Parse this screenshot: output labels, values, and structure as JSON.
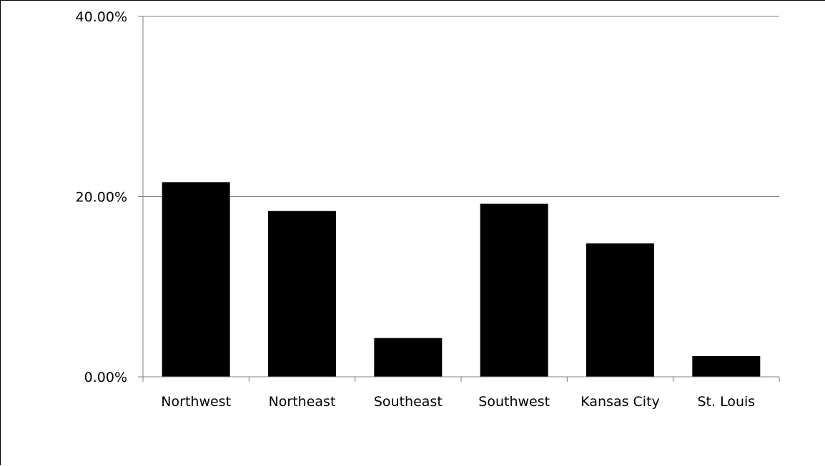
{
  "chart_data": {
    "type": "bar",
    "categories": [
      "Northwest",
      "Northeast",
      "Southeast",
      "Southwest",
      "Kansas City",
      "St. Louis"
    ],
    "values": [
      21.6,
      18.4,
      4.3,
      19.2,
      14.8,
      2.3
    ],
    "ylim": [
      0,
      40
    ],
    "yticks": [
      0,
      20,
      40
    ],
    "ytick_labels": [
      "0.00%",
      "20.00%",
      "40.00%"
    ],
    "grid": true,
    "title": "",
    "xlabel": "",
    "ylabel": "",
    "bar_color": "#000000",
    "gridline_color": "#808080"
  }
}
